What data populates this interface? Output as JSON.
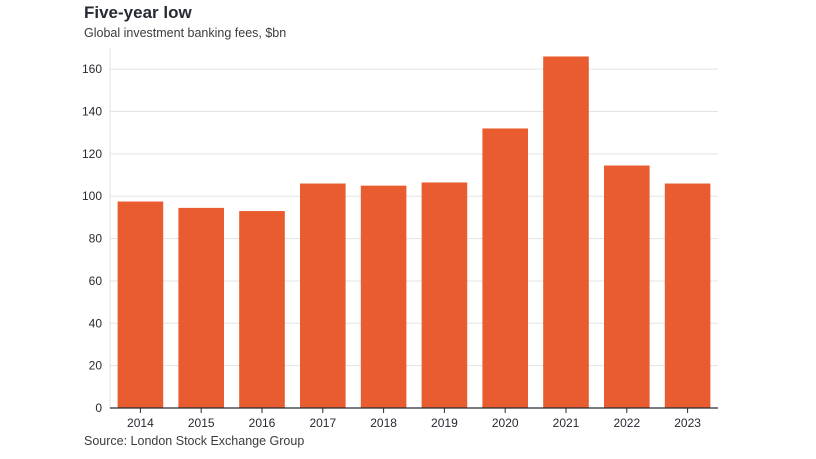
{
  "header": {
    "title": "Five-year low",
    "subtitle": "Global investment banking fees, $bn"
  },
  "footer": {
    "source": "Source: London Stock Exchange Group"
  },
  "colors": {
    "bar": "#e85c2f",
    "grid": "#e3e3e3",
    "axis": "#262a33"
  },
  "chart_data": {
    "type": "bar",
    "title": "Five-year low",
    "subtitle": "Global investment banking fees, $bn",
    "categories": [
      "2014",
      "2015",
      "2016",
      "2017",
      "2018",
      "2019",
      "2020",
      "2021",
      "2022",
      "2023"
    ],
    "values": [
      97.5,
      94.5,
      93,
      106,
      105,
      106.5,
      132,
      166,
      114.5,
      106
    ],
    "ylim": [
      0,
      170
    ],
    "yticks": [
      0,
      20,
      40,
      60,
      80,
      100,
      120,
      140,
      160
    ],
    "grid": true,
    "legend": "none"
  }
}
